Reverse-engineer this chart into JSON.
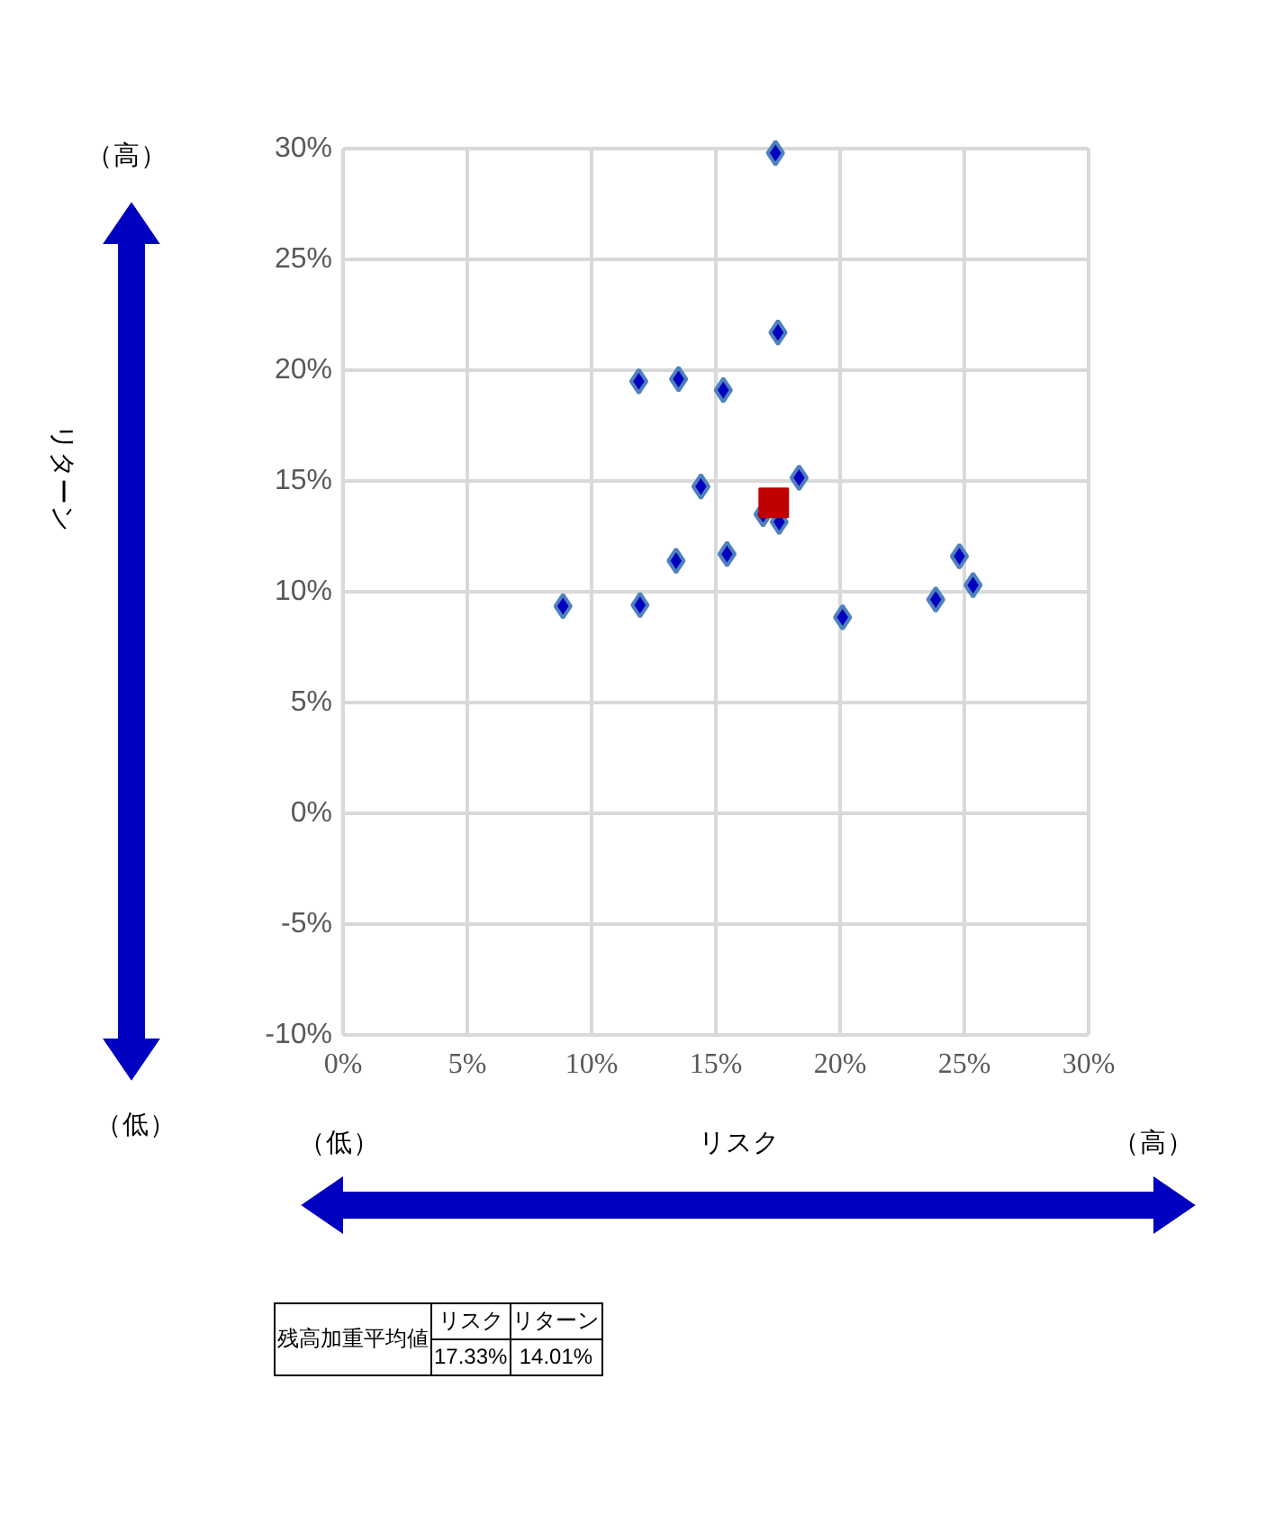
{
  "chart_data": {
    "type": "scatter",
    "xlabel": "リスク",
    "series": [
      {
        "color": "#0000c0",
        "marker": "diamond",
        "x": [
          17.4,
          17.5,
          11.9,
          13.5,
          15.3,
          14.4,
          18.35,
          16.9,
          17.55,
          13.4,
          15.45,
          24.8,
          25.35,
          23.85,
          20.1,
          11.95,
          8.85
        ],
        "values": [
          29.8,
          21.7,
          19.5,
          19.6,
          19.1,
          14.75,
          15.15,
          13.5,
          13.15,
          11.4,
          11.7,
          11.6,
          10.3,
          9.65,
          8.85,
          9.4,
          9.35
        ]
      },
      {
        "color": "#c00000",
        "marker": "square",
        "x": [
          17.33
        ],
        "values": [
          14.01
        ]
      }
    ],
    "xlim": [
      0,
      30
    ],
    "ylim": [
      -10,
      30
    ],
    "xticks": [
      {
        "value": 0,
        "label": "0%"
      },
      {
        "value": 5,
        "label": "5%"
      },
      {
        "value": 10,
        "label": "10%"
      },
      {
        "value": 15,
        "label": "15%"
      },
      {
        "value": 20,
        "label": "20%"
      },
      {
        "value": 25,
        "label": "25%"
      },
      {
        "value": 30,
        "label": "30%"
      }
    ],
    "yticks": [
      {
        "value": -10,
        "label": "-10%"
      },
      {
        "value": -5,
        "label": "-5%"
      },
      {
        "value": 0,
        "label": "0%"
      },
      {
        "value": 5,
        "label": "5%"
      },
      {
        "value": 10,
        "label": "10%"
      },
      {
        "value": 15,
        "label": "15%"
      },
      {
        "value": 20,
        "label": "20%"
      },
      {
        "value": 25,
        "label": "25%"
      },
      {
        "value": 30,
        "label": "30%"
      }
    ],
    "grid": true,
    "annotations": [
      "（高）",
      "（低）",
      "（低）",
      "（高）",
      "残高加重平均値",
      "リスク",
      "リターン",
      "17.33%",
      "14.01%",
      "リターン"
    ]
  }
}
